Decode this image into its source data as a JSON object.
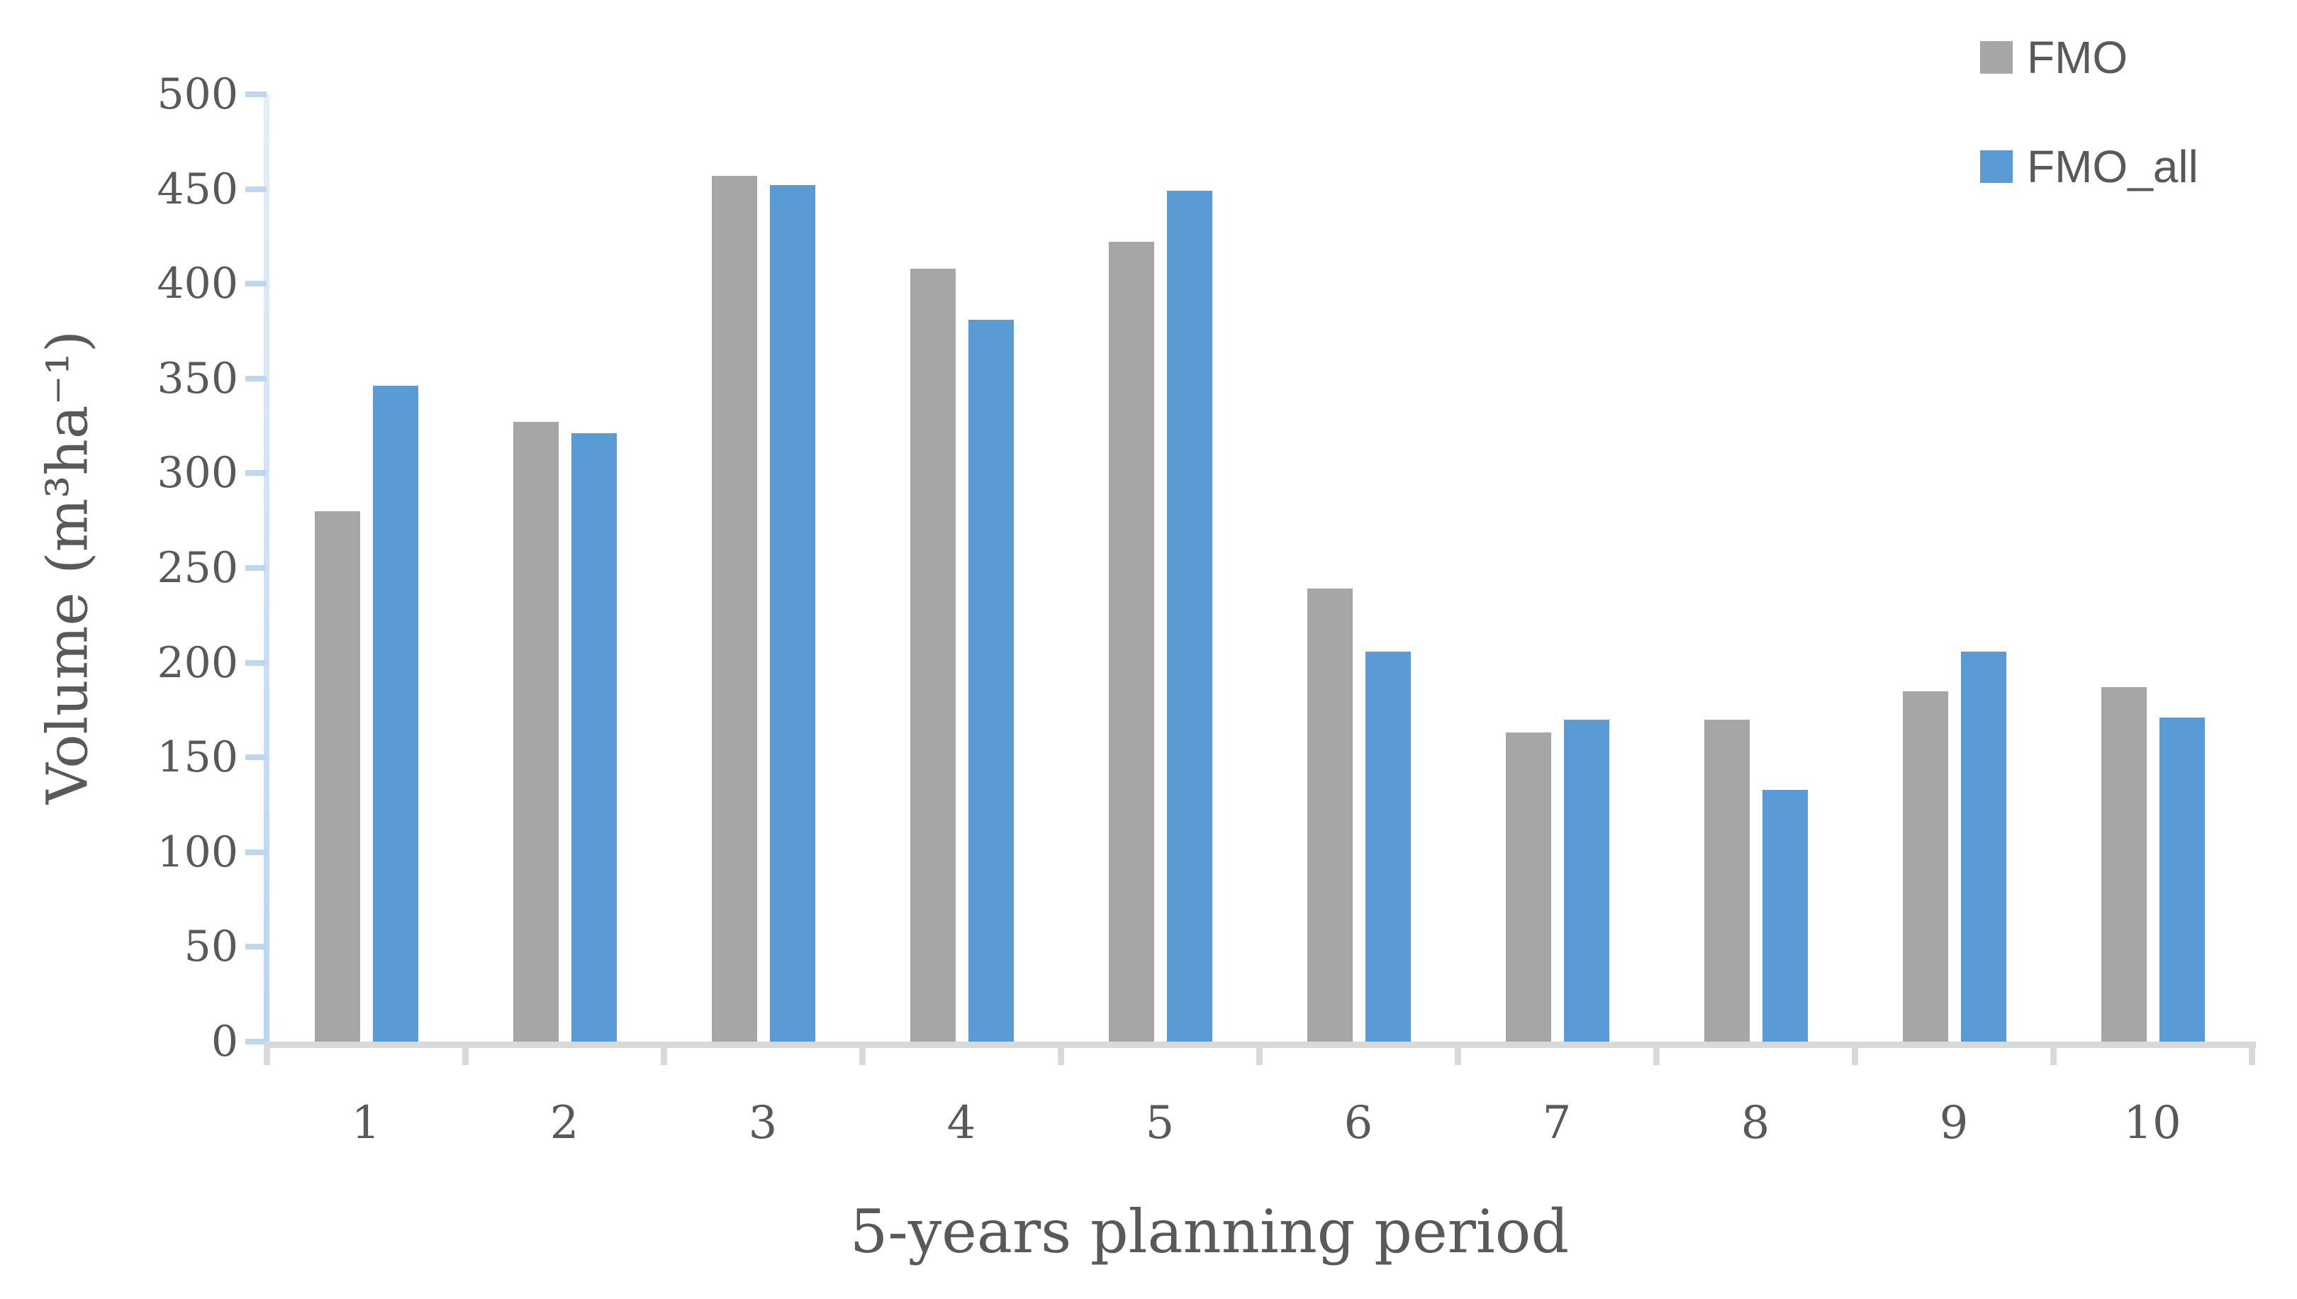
{
  "chart_data": {
    "type": "bar",
    "title": "",
    "categories": [
      "1",
      "2",
      "3",
      "4",
      "5",
      "6",
      "7",
      "8",
      "9",
      "10"
    ],
    "series": [
      {
        "name": "FMO",
        "color": "#A6A6A6",
        "values": [
          280,
          327,
          457,
          408,
          422,
          239,
          163,
          170,
          185,
          187
        ]
      },
      {
        "name": "FMO_all",
        "color": "#5B9BD5",
        "values": [
          346,
          321,
          452,
          381,
          449,
          206,
          170,
          133,
          206,
          171
        ]
      }
    ],
    "xlabel": "5-years planning period",
    "ylabel": "Volume (m³ha⁻¹)",
    "ylim": [
      0,
      500
    ],
    "yticks": [
      0,
      50,
      100,
      150,
      200,
      250,
      300,
      350,
      400,
      450,
      500
    ],
    "grid": false,
    "legend_position": "top-right",
    "axis_line_color": "#D9D9D9",
    "yaxis_line_color": "#BDD7EE",
    "text_color": "#595959"
  }
}
